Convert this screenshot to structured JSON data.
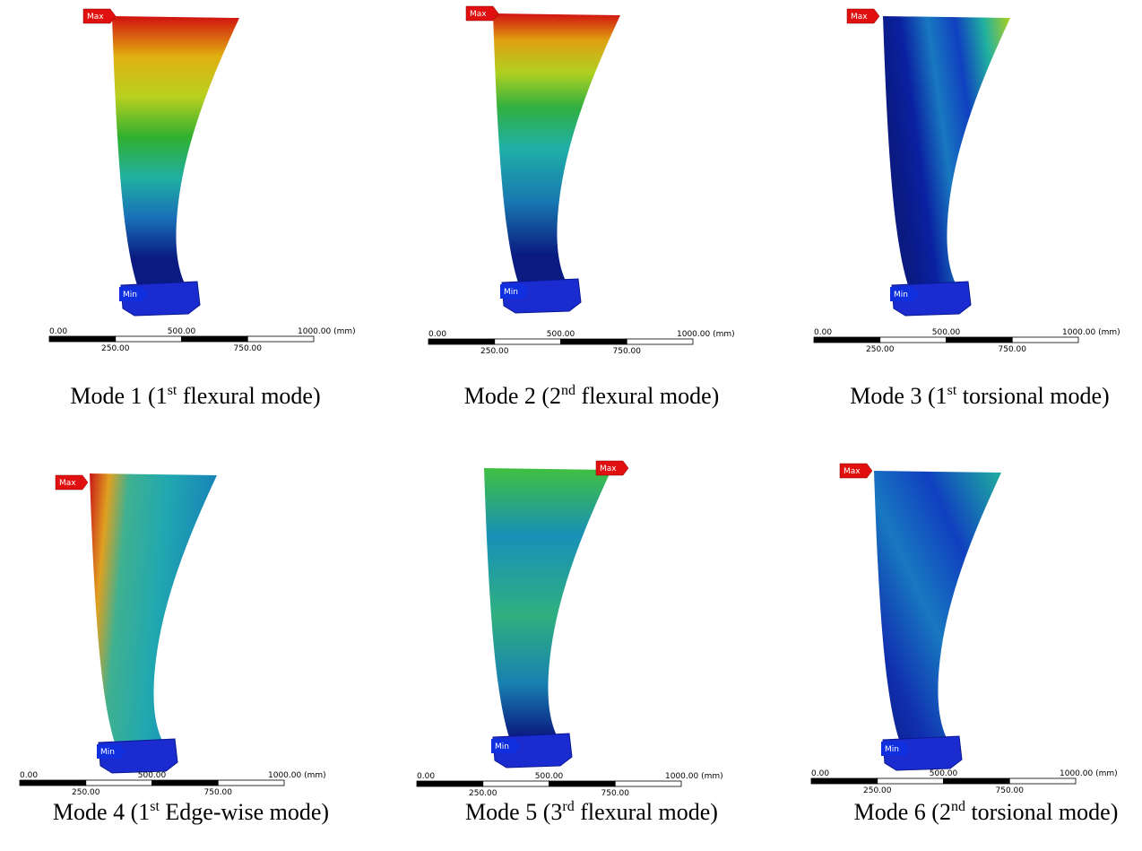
{
  "labels": {
    "max": "Max",
    "min": "Min"
  },
  "scale_bar": {
    "ticks": [
      "0.00",
      "250.00",
      "500.00",
      "750.00",
      "1000.00 (mm)"
    ]
  },
  "panels": [
    {
      "caption": {
        "mode": "Mode 1 (1",
        "sup": "st",
        "rest": " flexural mode)"
      }
    },
    {
      "caption": {
        "mode": "Mode 2 (2",
        "sup": "nd",
        "rest": " flexural mode)"
      }
    },
    {
      "caption": {
        "mode": "Mode 3 (1",
        "sup": "st",
        "rest": " torsional mode)"
      }
    },
    {
      "caption": {
        "mode": "Mode 4 (1",
        "sup": "st",
        "rest": " Edge-wise mode)"
      }
    },
    {
      "caption": {
        "mode": "Mode 5 (3",
        "sup": "rd",
        "rest": " flexural mode)"
      }
    },
    {
      "caption": {
        "mode": "Mode 6 (2",
        "sup": "nd",
        "rest": " torsional mode)"
      }
    }
  ]
}
